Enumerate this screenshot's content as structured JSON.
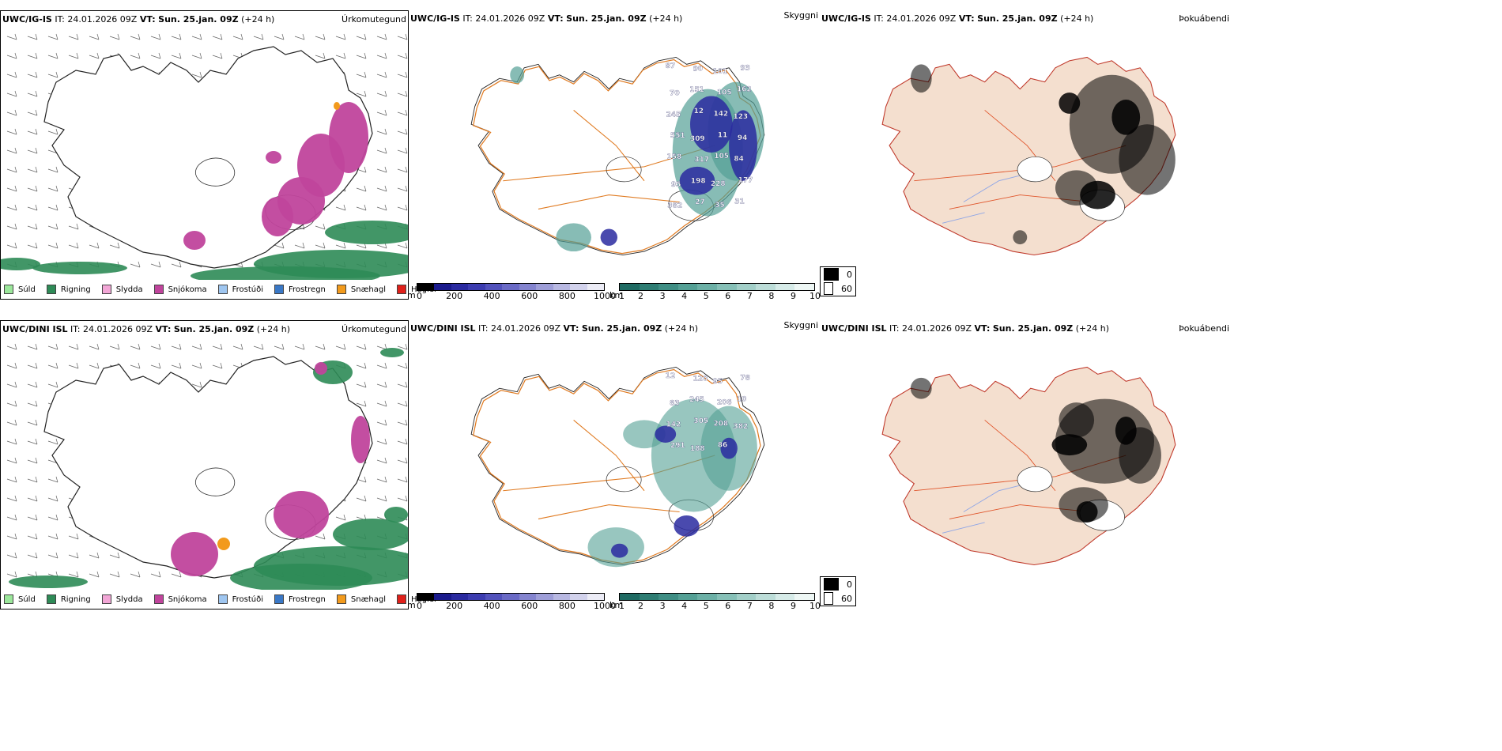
{
  "rows": [
    {
      "model": "UWC/IG-IS",
      "it_label": "IT:",
      "it_value": "24.01.2026 09Z",
      "vt_label": "VT:",
      "vt_value": "Sun. 25.jan. 09Z",
      "lead": "(+24 h)",
      "titles": {
        "precip_type": "Úrkomutegund",
        "cloud": "Skyggni",
        "fog": "Þokuábendi"
      },
      "numbers": [
        "87",
        "90",
        "101",
        "93",
        "70",
        "151",
        "105",
        "162",
        "245",
        "12",
        "142",
        "123",
        "551",
        "309",
        "11",
        "94",
        "158",
        "317",
        "105",
        "84",
        "95",
        "198",
        "228",
        "177",
        "382",
        "27",
        "35",
        "31"
      ]
    },
    {
      "model": "UWC/DINI ISL",
      "it_label": "IT:",
      "it_value": "24.01.2026 09Z",
      "vt_label": "VT:",
      "vt_value": "Sun. 25.jan. 09Z",
      "lead": "(+24 h)",
      "titles": {
        "precip_type": "Úrkomutegund",
        "cloud": "Skyggni",
        "fog": "Þokuábendi"
      },
      "numbers": [
        "12",
        "120",
        "95",
        "78",
        "83",
        "245",
        "206",
        "10",
        "142",
        "305",
        "208",
        "382",
        "291",
        "188",
        "86"
      ]
    }
  ],
  "precip_legend": [
    {
      "label": "Súld",
      "color": "#9be79b"
    },
    {
      "label": "Rigning",
      "color": "#2e8b57"
    },
    {
      "label": "Slydda",
      "color": "#f2a6d6"
    },
    {
      "label": "Snjókoma",
      "color": "#c0449c"
    },
    {
      "label": "Frostúði",
      "color": "#9fc6f0"
    },
    {
      "label": "Frostregn",
      "color": "#3a78c6"
    },
    {
      "label": "Snæhagl",
      "color": "#f29a1c"
    },
    {
      "label": "Haglél",
      "color": "#e0201a"
    }
  ],
  "cloud_base_scale": {
    "unit": "m",
    "ticks": [
      "0",
      "200",
      "400",
      "600",
      "800",
      "1000"
    ],
    "colors": [
      "#000000",
      "#1a1a8c",
      "#2a2aa0",
      "#3c3cb0",
      "#5252bc",
      "#6a6ac6",
      "#8484cf",
      "#9e9ed8",
      "#b8b8e2",
      "#d2d2ec",
      "#ececf6"
    ]
  },
  "visibility_scale": {
    "unit": "km",
    "ticks": [
      "1",
      "2",
      "3",
      "4",
      "5",
      "6",
      "7",
      "8",
      "9",
      "10"
    ],
    "colors": [
      "#1f6b63",
      "#2e7d73",
      "#3f8e84",
      "#54a095",
      "#6cb0a6",
      "#86c0b7",
      "#a2cfc8",
      "#bcddd8",
      "#d6ebe8",
      "#eef7f5"
    ]
  },
  "fog_legend": [
    {
      "label": "0",
      "color": "#000000"
    },
    {
      "label": "60",
      "color": "#ffffff"
    }
  ]
}
